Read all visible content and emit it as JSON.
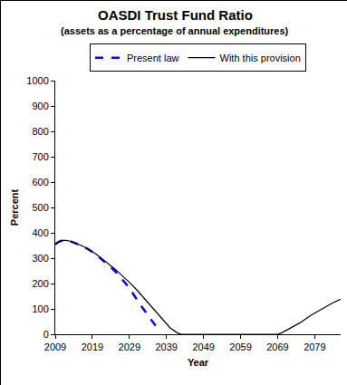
{
  "chart_data": {
    "type": "line",
    "title": "OASDI Trust Fund Ratio",
    "subtitle": "(assets as a percentage of annual expenditures)",
    "x_label": "Year",
    "y_label": "Percent",
    "xlim": [
      2009,
      2086
    ],
    "xticks": [
      2009,
      2019,
      2029,
      2039,
      2049,
      2059,
      2069,
      2079
    ],
    "ylim": [
      0,
      1000
    ],
    "yticks": [
      0,
      100,
      200,
      300,
      400,
      500,
      600,
      700,
      800,
      900,
      1000
    ],
    "grid": false,
    "legend": "top",
    "series": [
      {
        "name": "Present law",
        "color": "#0000ff",
        "line_style": "dashed",
        "x": [
          2009,
          2010,
          2011,
          2012,
          2013,
          2014,
          2015,
          2016,
          2017,
          2018,
          2019,
          2020,
          2021,
          2022,
          2024,
          2026,
          2028,
          2030,
          2032,
          2034,
          2036,
          2037
        ],
        "values": [
          355,
          365,
          370,
          370,
          367,
          362,
          356,
          350,
          343,
          335,
          325,
          314,
          302,
          290,
          265,
          235,
          200,
          160,
          115,
          75,
          35,
          15
        ]
      },
      {
        "name": "With this provision",
        "color": "#000000",
        "line_style": "solid",
        "x": [
          2009,
          2010,
          2011,
          2012,
          2013,
          2014,
          2015,
          2016,
          2017,
          2018,
          2019,
          2020,
          2021,
          2022,
          2023,
          2024,
          2025,
          2026,
          2027,
          2029,
          2031,
          2034,
          2037,
          2040,
          2042,
          2043,
          2050,
          2060,
          2069,
          2070,
          2072,
          2075,
          2078,
          2081,
          2084,
          2086
        ],
        "values": [
          355,
          365,
          370,
          370,
          367,
          362,
          356,
          350,
          343,
          335,
          326,
          316,
          305,
          294,
          282,
          270,
          258,
          245,
          232,
          205,
          175,
          125,
          75,
          25,
          5,
          0,
          0,
          0,
          0,
          5,
          20,
          45,
          75,
          100,
          125,
          138
        ]
      }
    ]
  }
}
